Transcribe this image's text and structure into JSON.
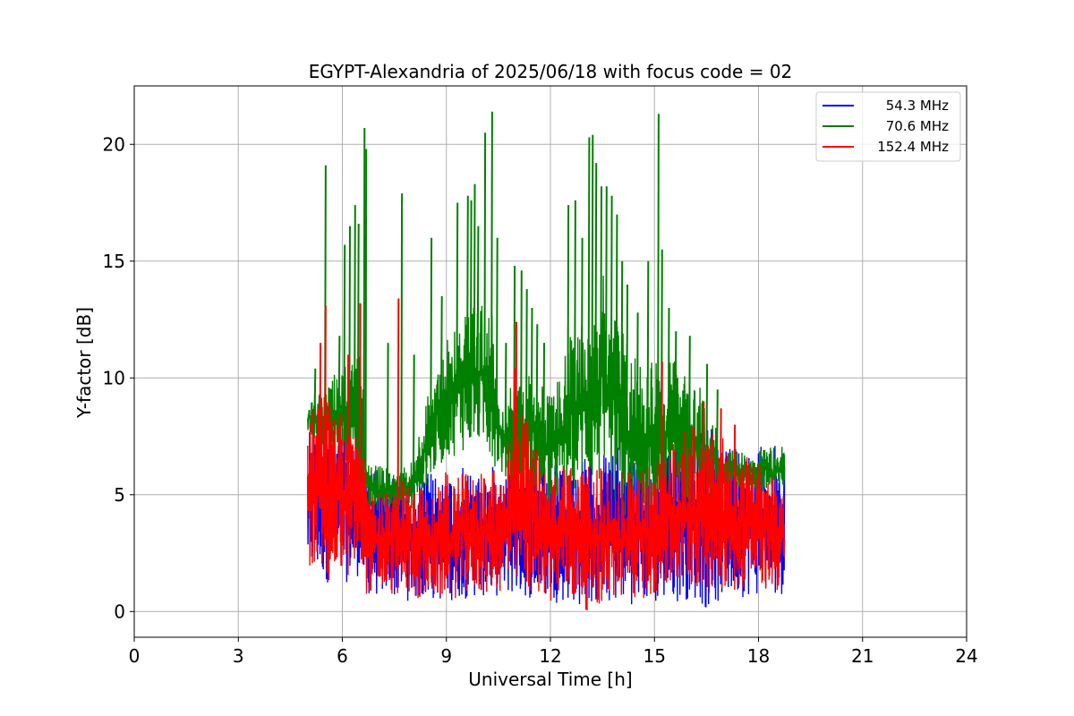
{
  "chart_data": {
    "type": "line",
    "title": "EGYPT-Alexandria of 2025/06/18 with focus code = 02",
    "xlabel": "Universal Time [h]",
    "ylabel": "Y-factor [dB]",
    "xlim": [
      0,
      24
    ],
    "ylim": [
      -1.1,
      22.5
    ],
    "xticks": [
      0,
      3,
      6,
      9,
      12,
      15,
      18,
      21,
      24
    ],
    "yticks": [
      0,
      5,
      10,
      15,
      20
    ],
    "grid": true,
    "legend_position": "top-right",
    "series": [
      {
        "name": "54.3 MHz",
        "color": "#0000ff",
        "upper": [
          [
            5.0,
            8.7
          ],
          [
            5.5,
            8.5
          ],
          [
            6.0,
            8.0
          ],
          [
            6.5,
            7.2
          ],
          [
            6.7,
            6.5
          ],
          [
            7.0,
            6.2
          ],
          [
            7.5,
            6.0
          ],
          [
            8.0,
            6.0
          ],
          [
            8.5,
            6.0
          ],
          [
            9.0,
            6.1
          ],
          [
            9.5,
            6.2
          ],
          [
            10.0,
            6.2
          ],
          [
            10.5,
            6.3
          ],
          [
            11.0,
            6.3
          ],
          [
            11.5,
            6.2
          ],
          [
            12.0,
            6.3
          ],
          [
            12.5,
            6.5
          ],
          [
            13.0,
            6.7
          ],
          [
            13.5,
            7.0
          ],
          [
            14.0,
            7.1
          ],
          [
            14.5,
            7.0
          ],
          [
            15.0,
            7.1
          ],
          [
            15.5,
            7.2
          ],
          [
            16.0,
            7.6
          ],
          [
            16.5,
            8.1
          ],
          [
            17.0,
            7.6
          ],
          [
            17.5,
            7.4
          ],
          [
            18.0,
            7.2
          ],
          [
            18.75,
            7.1
          ]
        ],
        "lower": [
          [
            5.0,
            1.3
          ],
          [
            5.5,
            1.2
          ],
          [
            6.0,
            1.1
          ],
          [
            6.5,
            1.5
          ],
          [
            6.7,
            0.6
          ],
          [
            7.5,
            0.5
          ],
          [
            8.5,
            0.3
          ],
          [
            9.5,
            0.5
          ],
          [
            10.5,
            0.6
          ],
          [
            11.5,
            0.5
          ],
          [
            12.5,
            0.3
          ],
          [
            13.0,
            0.1
          ],
          [
            13.5,
            0.2
          ],
          [
            14.5,
            0.3
          ],
          [
            15.0,
            0.1
          ],
          [
            15.5,
            0.3
          ],
          [
            16.0,
            0.5
          ],
          [
            16.5,
            0.0
          ],
          [
            17.0,
            0.3
          ],
          [
            17.5,
            0.6
          ],
          [
            18.0,
            0.6
          ],
          [
            18.75,
            0.7
          ]
        ],
        "spikes": [
          [
            9.6,
            3.5
          ],
          [
            9.9,
            3.8
          ],
          [
            10.4,
            3.2
          ],
          [
            12.3,
            3.6
          ],
          [
            14.6,
            3.3
          ]
        ]
      },
      {
        "name": "70.6 MHz",
        "color": "#008000",
        "upper": [
          [
            5.0,
            8.9
          ],
          [
            5.3,
            9.5
          ],
          [
            5.5,
            9.3
          ],
          [
            5.8,
            10.3
          ],
          [
            6.0,
            10.5
          ],
          [
            6.3,
            10.8
          ],
          [
            6.6,
            11.0
          ],
          [
            6.7,
            6.5
          ],
          [
            7.0,
            6.3
          ],
          [
            7.5,
            6.1
          ],
          [
            8.0,
            6.5
          ],
          [
            8.5,
            9.5
          ],
          [
            9.0,
            12.0
          ],
          [
            9.3,
            12.8
          ],
          [
            9.6,
            13.2
          ],
          [
            10.0,
            13.3
          ],
          [
            10.3,
            13.0
          ],
          [
            10.6,
            9.0
          ],
          [
            11.0,
            10.0
          ],
          [
            11.5,
            10.5
          ],
          [
            12.0,
            9.2
          ],
          [
            12.5,
            11.6
          ],
          [
            13.0,
            13.0
          ],
          [
            13.5,
            14.5
          ],
          [
            14.0,
            13.0
          ],
          [
            14.3,
            11.8
          ],
          [
            14.7,
            11.0
          ],
          [
            15.0,
            11.5
          ],
          [
            15.5,
            11.2
          ],
          [
            16.0,
            10.5
          ],
          [
            16.5,
            9.2
          ],
          [
            17.0,
            7.0
          ],
          [
            17.5,
            6.8
          ],
          [
            18.0,
            7.0
          ],
          [
            18.75,
            7.1
          ]
        ],
        "lower": [
          [
            5.0,
            7.5
          ],
          [
            5.5,
            6.8
          ],
          [
            6.0,
            6.3
          ],
          [
            6.5,
            5.8
          ],
          [
            6.7,
            4.0
          ],
          [
            7.5,
            4.3
          ],
          [
            8.0,
            4.2
          ],
          [
            8.5,
            5.5
          ],
          [
            9.0,
            6.5
          ],
          [
            9.5,
            6.8
          ],
          [
            10.0,
            7.0
          ],
          [
            10.5,
            6.0
          ],
          [
            11.0,
            5.0
          ],
          [
            11.5,
            4.8
          ],
          [
            12.0,
            4.2
          ],
          [
            12.5,
            5.0
          ],
          [
            13.0,
            5.5
          ],
          [
            13.5,
            5.0
          ],
          [
            14.0,
            3.6
          ],
          [
            14.5,
            3.0
          ],
          [
            15.0,
            3.5
          ],
          [
            15.5,
            4.0
          ],
          [
            16.0,
            4.2
          ],
          [
            16.5,
            4.5
          ],
          [
            17.0,
            5.0
          ],
          [
            17.5,
            5.2
          ],
          [
            18.0,
            5.0
          ],
          [
            18.75,
            5.0
          ]
        ],
        "spikes": [
          [
            5.2,
            10.4
          ],
          [
            5.5,
            19.1
          ],
          [
            5.9,
            11.8
          ],
          [
            6.05,
            15.7
          ],
          [
            6.2,
            16.5
          ],
          [
            6.35,
            17.4
          ],
          [
            6.45,
            16.6
          ],
          [
            6.62,
            20.7
          ],
          [
            6.67,
            19.8
          ],
          [
            7.3,
            11.5
          ],
          [
            7.7,
            17.9
          ],
          [
            8.05,
            11.0
          ],
          [
            8.55,
            16.0
          ],
          [
            8.85,
            13.5
          ],
          [
            9.3,
            17.5
          ],
          [
            9.6,
            17.8
          ],
          [
            9.7,
            17.6
          ],
          [
            9.8,
            18.3
          ],
          [
            9.9,
            16.5
          ],
          [
            10.1,
            20.5
          ],
          [
            10.3,
            21.4
          ],
          [
            10.45,
            16.0
          ],
          [
            10.7,
            11.5
          ],
          [
            10.95,
            14.8
          ],
          [
            11.15,
            14.6
          ],
          [
            11.3,
            13.8
          ],
          [
            11.45,
            13.0
          ],
          [
            11.6,
            12.3
          ],
          [
            11.8,
            11.5
          ],
          [
            12.5,
            17.4
          ],
          [
            12.7,
            17.6
          ],
          [
            12.9,
            16.0
          ],
          [
            13.1,
            20.3
          ],
          [
            13.2,
            20.4
          ],
          [
            13.3,
            19.2
          ],
          [
            13.45,
            18.2
          ],
          [
            13.6,
            18.2
          ],
          [
            13.75,
            17.8
          ],
          [
            13.9,
            17.0
          ],
          [
            14.05,
            15.0
          ],
          [
            14.2,
            14.0
          ],
          [
            14.5,
            12.8
          ],
          [
            14.8,
            15.0
          ],
          [
            15.1,
            21.3
          ],
          [
            15.2,
            15.5
          ],
          [
            15.4,
            13.0
          ],
          [
            15.6,
            12.0
          ],
          [
            16.0,
            11.8
          ],
          [
            16.5,
            10.6
          ],
          [
            16.8,
            9.5
          ]
        ]
      },
      {
        "name": "152.4 MHz",
        "color": "#ff0000",
        "upper": [
          [
            5.0,
            8.6
          ],
          [
            5.3,
            9.0
          ],
          [
            5.5,
            9.6
          ],
          [
            6.0,
            9.0
          ],
          [
            6.3,
            8.0
          ],
          [
            6.6,
            7.3
          ],
          [
            6.7,
            6.0
          ],
          [
            7.0,
            5.2
          ],
          [
            7.5,
            5.5
          ],
          [
            8.0,
            5.8
          ],
          [
            8.5,
            5.5
          ],
          [
            9.0,
            6.0
          ],
          [
            9.5,
            6.2
          ],
          [
            10.0,
            6.2
          ],
          [
            10.5,
            6.5
          ],
          [
            11.0,
            8.0
          ],
          [
            11.2,
            9.0
          ],
          [
            11.5,
            7.5
          ],
          [
            12.0,
            6.0
          ],
          [
            12.5,
            6.5
          ],
          [
            13.0,
            6.3
          ],
          [
            13.5,
            6.2
          ],
          [
            14.0,
            6.0
          ],
          [
            14.5,
            6.0
          ],
          [
            15.0,
            6.5
          ],
          [
            15.5,
            7.2
          ],
          [
            16.0,
            8.0
          ],
          [
            16.5,
            8.0
          ],
          [
            17.0,
            7.4
          ],
          [
            17.5,
            7.0
          ],
          [
            18.0,
            6.5
          ],
          [
            18.75,
            5.8
          ]
        ],
        "lower": [
          [
            5.0,
            1.4
          ],
          [
            5.5,
            1.2
          ],
          [
            6.0,
            1.1
          ],
          [
            6.5,
            1.7
          ],
          [
            6.7,
            0.7
          ],
          [
            7.5,
            0.6
          ],
          [
            8.5,
            0.3
          ],
          [
            9.5,
            0.6
          ],
          [
            10.5,
            0.7
          ],
          [
            11.5,
            0.6
          ],
          [
            12.5,
            0.3
          ],
          [
            13.0,
            0.0
          ],
          [
            13.5,
            0.2
          ],
          [
            14.0,
            0.4
          ],
          [
            14.5,
            0.4
          ],
          [
            15.0,
            0.6
          ],
          [
            15.5,
            0.7
          ],
          [
            16.0,
            0.8
          ],
          [
            16.5,
            0.7
          ],
          [
            17.0,
            0.9
          ],
          [
            17.5,
            0.9
          ],
          [
            18.0,
            0.8
          ],
          [
            18.75,
            0.7
          ]
        ],
        "spikes": [
          [
            5.5,
            13.1
          ],
          [
            5.35,
            11.5
          ],
          [
            6.15,
            11.0
          ],
          [
            6.5,
            13.2
          ],
          [
            7.6,
            13.4
          ],
          [
            11.0,
            12.4
          ],
          [
            10.95,
            10.4
          ],
          [
            15.2,
            10.7
          ],
          [
            16.4,
            9.0
          ],
          [
            16.9,
            8.7
          ],
          [
            17.3,
            8.0
          ]
        ]
      }
    ]
  }
}
